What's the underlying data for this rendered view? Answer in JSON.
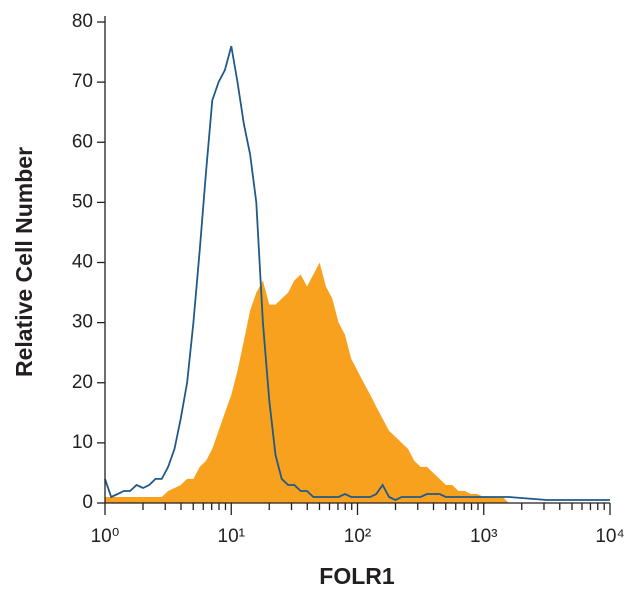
{
  "chart_data": {
    "type": "histogram-line",
    "x_label": "FOLR1",
    "y_label": "Relative Cell Number",
    "log_x": true,
    "xlim": [
      1,
      10000
    ],
    "xticks": [
      {
        "value": 1,
        "label": "10⁰"
      },
      {
        "value": 10,
        "label": "10¹"
      },
      {
        "value": 100,
        "label": "10²"
      },
      {
        "value": 1000,
        "label": "10³"
      },
      {
        "value": 10000,
        "label": "10⁴"
      }
    ],
    "ylim": [
      0,
      80
    ],
    "yticks": [
      0,
      10,
      20,
      30,
      40,
      50,
      60,
      70,
      80
    ],
    "x": [
      1,
      1.12,
      1.26,
      1.41,
      1.58,
      1.78,
      2,
      2.24,
      2.51,
      2.82,
      3.16,
      3.55,
      3.98,
      4.47,
      5.01,
      5.62,
      6.31,
      7.08,
      7.94,
      8.91,
      10,
      11.2,
      12.6,
      14.1,
      15.8,
      17.8,
      20,
      22.4,
      25.1,
      28.2,
      31.6,
      35.5,
      39.8,
      44.7,
      50.1,
      56.2,
      63.1,
      70.8,
      79.4,
      89.1,
      100,
      112,
      126,
      141,
      158,
      178,
      200,
      224,
      251,
      282,
      316,
      355,
      398,
      447,
      501,
      562,
      631,
      708,
      794,
      891,
      1000,
      1120,
      1260,
      1410,
      1580,
      3160,
      10000
    ],
    "series": [
      {
        "color": "#f7a11f",
        "fill": true,
        "values": [
          1,
          1,
          1,
          1,
          1,
          1,
          1,
          1,
          1,
          1,
          2,
          2.5,
          3,
          4,
          4,
          6,
          7,
          9,
          12,
          15,
          18,
          22,
          27,
          32,
          35,
          37,
          33,
          33,
          34,
          35,
          37,
          38,
          36,
          38,
          40,
          36,
          34,
          30,
          28,
          24,
          22,
          20,
          18,
          16,
          14,
          12,
          11,
          10,
          9,
          7,
          6,
          6,
          5,
          4,
          3,
          3,
          2,
          2,
          1.5,
          1.5,
          1,
          1,
          1,
          1,
          0,
          0,
          0
        ]
      },
      {
        "color": "#1f5a8a",
        "fill": false,
        "values": [
          4,
          1,
          1.5,
          2,
          2,
          3,
          2.5,
          3,
          4,
          4,
          6,
          9,
          14,
          20,
          30,
          42,
          55,
          67,
          70,
          72,
          76,
          70,
          63,
          58,
          50,
          30,
          17,
          8,
          4,
          3,
          3,
          2,
          2,
          1,
          1,
          1,
          1,
          1,
          1.5,
          1,
          1,
          1,
          1,
          1.5,
          3,
          1,
          0.5,
          1,
          1,
          1,
          1,
          1.5,
          1.5,
          1.5,
          1,
          1,
          1,
          1,
          1,
          1,
          1,
          1,
          1,
          1,
          1,
          0.5,
          0.5
        ]
      }
    ]
  }
}
